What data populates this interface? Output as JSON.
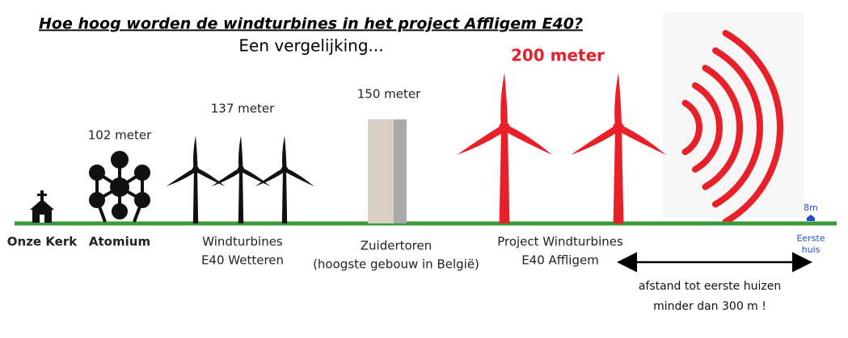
{
  "title": "Hoe hoog worden de windturbines in het project Affligem E40?",
  "subtitle": "Een vergelijking...",
  "objects": [
    {
      "label": [
        "Onze Kerk"
      ]
    },
    {
      "height": "102 meter",
      "label": [
        "Atomium"
      ]
    },
    {
      "height": "137 meter",
      "label": [
        "Windturbines",
        "E40 Wetteren"
      ]
    },
    {
      "height": "150 meter",
      "label": [
        "Zuidertoren",
        "(hoogste gebouw in België)"
      ]
    },
    {
      "height": "200 meter",
      "label": [
        "Project Windturbines",
        "E40 Affligem"
      ]
    },
    {
      "height": "8m",
      "label": [
        "Eerste",
        "huis"
      ]
    }
  ],
  "distance_note": [
    "afstand tot eerste huizen",
    "minder dan 300 m !"
  ]
}
